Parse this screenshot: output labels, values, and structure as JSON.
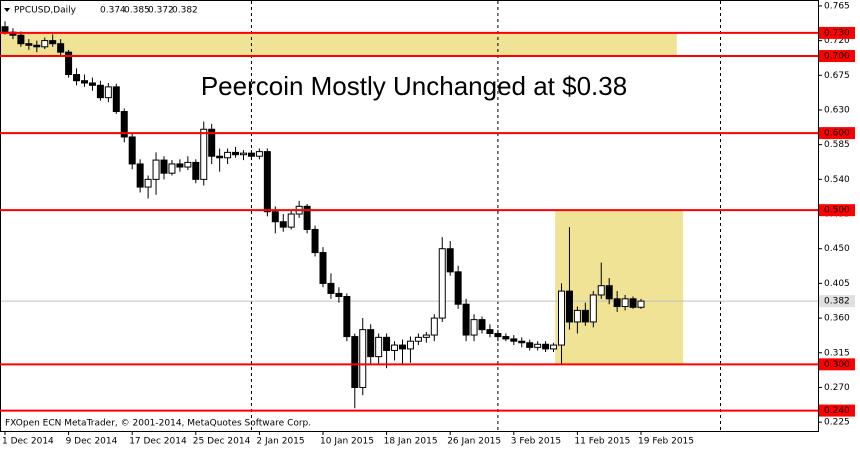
{
  "chart_data": {
    "type": "candlestick",
    "symbol": "PPCUSD,Daily",
    "title": "Peercoin Mostly Unchanged at $0.38",
    "footer": "FXOpen ECN MetaTrader, © 2001-2014, MetaQuotes Software Corp.",
    "categories": [
      "1 Dec 2014",
      null,
      null,
      null,
      null,
      null,
      null,
      null,
      "9 Dec 2014",
      null,
      null,
      null,
      null,
      null,
      null,
      null,
      "17 Dec 2014",
      null,
      null,
      null,
      null,
      null,
      null,
      null,
      "25 Dec 2014",
      null,
      null,
      null,
      null,
      null,
      null,
      null,
      "2 Jan 2015",
      null,
      null,
      null,
      null,
      null,
      null,
      null,
      "10 Jan 2015",
      null,
      null,
      null,
      null,
      null,
      null,
      null,
      "18 Jan 2015",
      null,
      null,
      null,
      null,
      null,
      null,
      null,
      "26 Jan 2015",
      null,
      null,
      null,
      null,
      null,
      null,
      null,
      "3 Feb 2015",
      null,
      null,
      null,
      null,
      null,
      null,
      null,
      "11 Feb 2015",
      null,
      null,
      null,
      null,
      null,
      null,
      null,
      "19 Feb 2015"
    ],
    "open": [
      0.738,
      0.731,
      0.727,
      0.716,
      0.714,
      0.712,
      0.72,
      0.716,
      0.705,
      0.676,
      0.668,
      0.665,
      0.662,
      0.646,
      0.66,
      0.628,
      0.595,
      0.56,
      0.53,
      0.54,
      0.565,
      0.548,
      0.56,
      0.556,
      0.562,
      0.54,
      0.605,
      0.57,
      0.568,
      0.575,
      0.572,
      0.574,
      0.57,
      0.576,
      0.498,
      0.485,
      0.478,
      0.495,
      0.505,
      0.475,
      0.445,
      0.405,
      0.392,
      0.388,
      0.336,
      0.27,
      0.345,
      0.31,
      0.335,
      0.318,
      0.325,
      0.32,
      0.33,
      0.335,
      0.338,
      0.36,
      0.45,
      0.42,
      0.378,
      0.338,
      0.358,
      0.345,
      0.34,
      0.336,
      0.333,
      0.33,
      0.328,
      0.322,
      0.326,
      0.32,
      0.325,
      0.395,
      0.355,
      0.37,
      0.355,
      0.39,
      0.402,
      0.385,
      0.375,
      0.385,
      0.374
    ],
    "high": [
      0.745,
      0.736,
      0.732,
      0.722,
      0.72,
      0.724,
      0.728,
      0.722,
      0.708,
      0.684,
      0.676,
      0.672,
      0.668,
      0.665,
      0.664,
      0.632,
      0.6,
      0.566,
      0.545,
      0.575,
      0.57,
      0.565,
      0.566,
      0.57,
      0.566,
      0.615,
      0.612,
      0.58,
      0.58,
      0.582,
      0.578,
      0.578,
      0.58,
      0.58,
      0.505,
      0.495,
      0.5,
      0.512,
      0.508,
      0.48,
      0.452,
      0.418,
      0.4,
      0.392,
      0.34,
      0.36,
      0.352,
      0.34,
      0.34,
      0.33,
      0.332,
      0.336,
      0.34,
      0.342,
      0.365,
      0.465,
      0.46,
      0.428,
      0.385,
      0.365,
      0.362,
      0.352,
      0.345,
      0.34,
      0.338,
      0.335,
      0.332,
      0.33,
      0.33,
      0.328,
      0.405,
      0.478,
      0.375,
      0.38,
      0.395,
      0.432,
      0.412,
      0.395,
      0.39,
      0.388,
      0.385
    ],
    "low": [
      0.728,
      0.722,
      0.712,
      0.708,
      0.705,
      0.709,
      0.712,
      0.7,
      0.672,
      0.662,
      0.66,
      0.655,
      0.642,
      0.64,
      0.625,
      0.588,
      0.553,
      0.523,
      0.515,
      0.52,
      0.54,
      0.545,
      0.55,
      0.552,
      0.535,
      0.532,
      0.56,
      0.55,
      0.56,
      0.568,
      0.565,
      0.565,
      0.566,
      0.492,
      0.47,
      0.472,
      0.475,
      0.49,
      0.47,
      0.44,
      0.4,
      0.385,
      0.38,
      0.33,
      0.243,
      0.26,
      0.3,
      0.3,
      0.295,
      0.305,
      0.3,
      0.302,
      0.325,
      0.328,
      0.33,
      0.355,
      0.415,
      0.372,
      0.33,
      0.33,
      0.34,
      0.335,
      0.33,
      0.33,
      0.325,
      0.322,
      0.318,
      0.318,
      0.316,
      0.316,
      0.3,
      0.345,
      0.34,
      0.35,
      0.348,
      0.385,
      0.378,
      0.368,
      0.37,
      0.372,
      0.372
    ],
    "close": [
      0.732,
      0.727,
      0.716,
      0.714,
      0.712,
      0.72,
      0.716,
      0.705,
      0.676,
      0.668,
      0.665,
      0.662,
      0.646,
      0.66,
      0.628,
      0.595,
      0.56,
      0.53,
      0.54,
      0.565,
      0.548,
      0.56,
      0.556,
      0.562,
      0.54,
      0.605,
      0.57,
      0.568,
      0.575,
      0.572,
      0.574,
      0.57,
      0.576,
      0.498,
      0.485,
      0.478,
      0.495,
      0.505,
      0.475,
      0.445,
      0.405,
      0.392,
      0.388,
      0.336,
      0.27,
      0.345,
      0.31,
      0.335,
      0.318,
      0.325,
      0.32,
      0.33,
      0.335,
      0.338,
      0.36,
      0.45,
      0.42,
      0.378,
      0.338,
      0.358,
      0.345,
      0.34,
      0.336,
      0.333,
      0.33,
      0.328,
      0.322,
      0.326,
      0.32,
      0.325,
      0.395,
      0.355,
      0.37,
      0.355,
      0.39,
      0.402,
      0.385,
      0.375,
      0.385,
      0.374,
      0.382
    ],
    "up_color": "#ffffff",
    "down_color": "#000000",
    "ylim": [
      0.2135,
      0.7714
    ],
    "yticks": [
      0.765,
      {
        "value": 0.72,
        "label": "0.720"
      },
      0.675,
      {
        "value": 0.63,
        "label": "0.630"
      },
      0.585,
      {
        "value": 0.54,
        "label": "0.540"
      },
      0.495,
      {
        "value": 0.45,
        "label": "0.450"
      },
      0.405,
      {
        "value": 0.36,
        "label": "0.360"
      },
      0.315,
      {
        "value": 0.27,
        "label": "0.270"
      },
      0.225
    ],
    "levels": [
      {
        "value": 0.73,
        "label": "0.730"
      },
      {
        "value": 0.7,
        "label": "0.700"
      },
      {
        "value": 0.6,
        "label": "0.600"
      },
      {
        "value": 0.5,
        "label": "0.500"
      },
      {
        "value": 0.3,
        "label": "0.300"
      },
      {
        "value": 0.24,
        "label": "0.240"
      }
    ],
    "level_color": "#ff0000",
    "zones": [
      {
        "range": [
          0.7,
          0.73
        ],
        "color": "#f0e395"
      },
      {
        "range": [
          0.3,
          0.5
        ],
        "color": "#f0e395"
      }
    ]
  }
}
